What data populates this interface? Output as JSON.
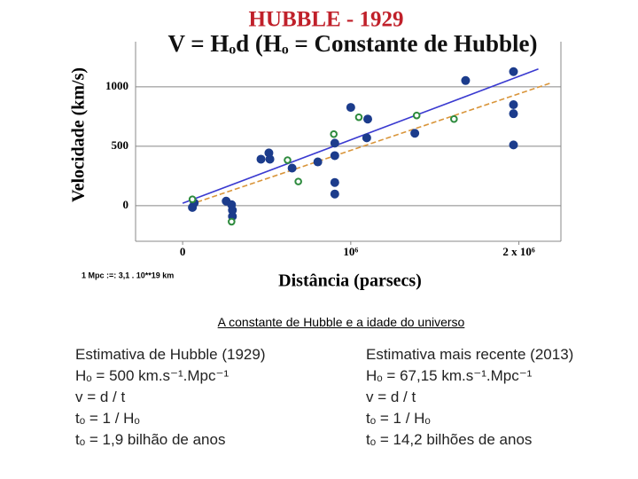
{
  "chart_data": {
    "type": "scatter",
    "title": "HUBBLE - 1929",
    "subtitle": "V = Hₒd  (Hₒ = Constante de Hubble)",
    "x_label": "Distância (parsecs)",
    "y_label": "Velocidade (km/s)",
    "note": "1 Mpc :=: 3,1 . 10**19 km",
    "xlim": [
      -280000,
      2250000
    ],
    "ylim": [
      -300,
      1380
    ],
    "xticks": [
      0,
      {
        "value": 1000000,
        "label": "10⁶"
      },
      {
        "value": 2000000,
        "label": "2 x 10⁶"
      }
    ],
    "yticks": [
      0,
      500,
      1000
    ],
    "grid": true,
    "series": [
      {
        "color": "#1c3c8c",
        "marker": "filled",
        "x": [
          58000,
          69000,
          259000,
          291000,
          296000,
          296000,
          466000,
          519000,
          513000,
          651000,
          804000,
          905000,
          905000,
          905000,
          905000,
          1000000,
          1095000,
          1101000,
          1381000,
          1683000,
          1968000,
          1968000,
          1968000,
          1968000
        ],
        "values": [
          -15,
          23,
          38,
          8,
          -38,
          -90,
          391,
          391,
          444,
          316,
          368,
          526,
          421,
          195,
          98,
          827,
          571,
          729,
          609,
          1053,
          1128,
          850,
          774,
          511
        ]
      },
      {
        "color": "#2e8b3e",
        "marker": "open",
        "x": [
          58000,
          291000,
          624000,
          688000,
          899000,
          1048000,
          1392000,
          1614000
        ],
        "values": [
          53,
          -135,
          383,
          203,
          602,
          744,
          759,
          729
        ]
      }
    ],
    "lines": [
      {
        "color": "#3a3ad0",
        "dash": false,
        "x": [
          0,
          2116000
        ],
        "values": [
          20,
          1150
        ]
      },
      {
        "color": "#d9953a",
        "dash": true,
        "x": [
          40000,
          2185000
        ],
        "values": [
          8,
          1030
        ]
      }
    ]
  },
  "caption": "A constante de Hubble e a idade do universo",
  "columns": [
    {
      "heading": "Estimativa de Hubble (1929)",
      "lines": [
        "Hₒ = 500 km.s⁻¹.Mpc⁻¹",
        "v = d / t",
        "tₒ = 1 / Hₒ",
        "tₒ = 1,9 bilhão de anos"
      ]
    },
    {
      "heading": "Estimativa mais recente (2013)",
      "lines": [
        "Hₒ = 67,15 km.s⁻¹.Mpc⁻¹",
        "v = d / t",
        "tₒ = 1 / Hₒ",
        "tₒ = 14,2 bilhões de anos"
      ]
    }
  ]
}
